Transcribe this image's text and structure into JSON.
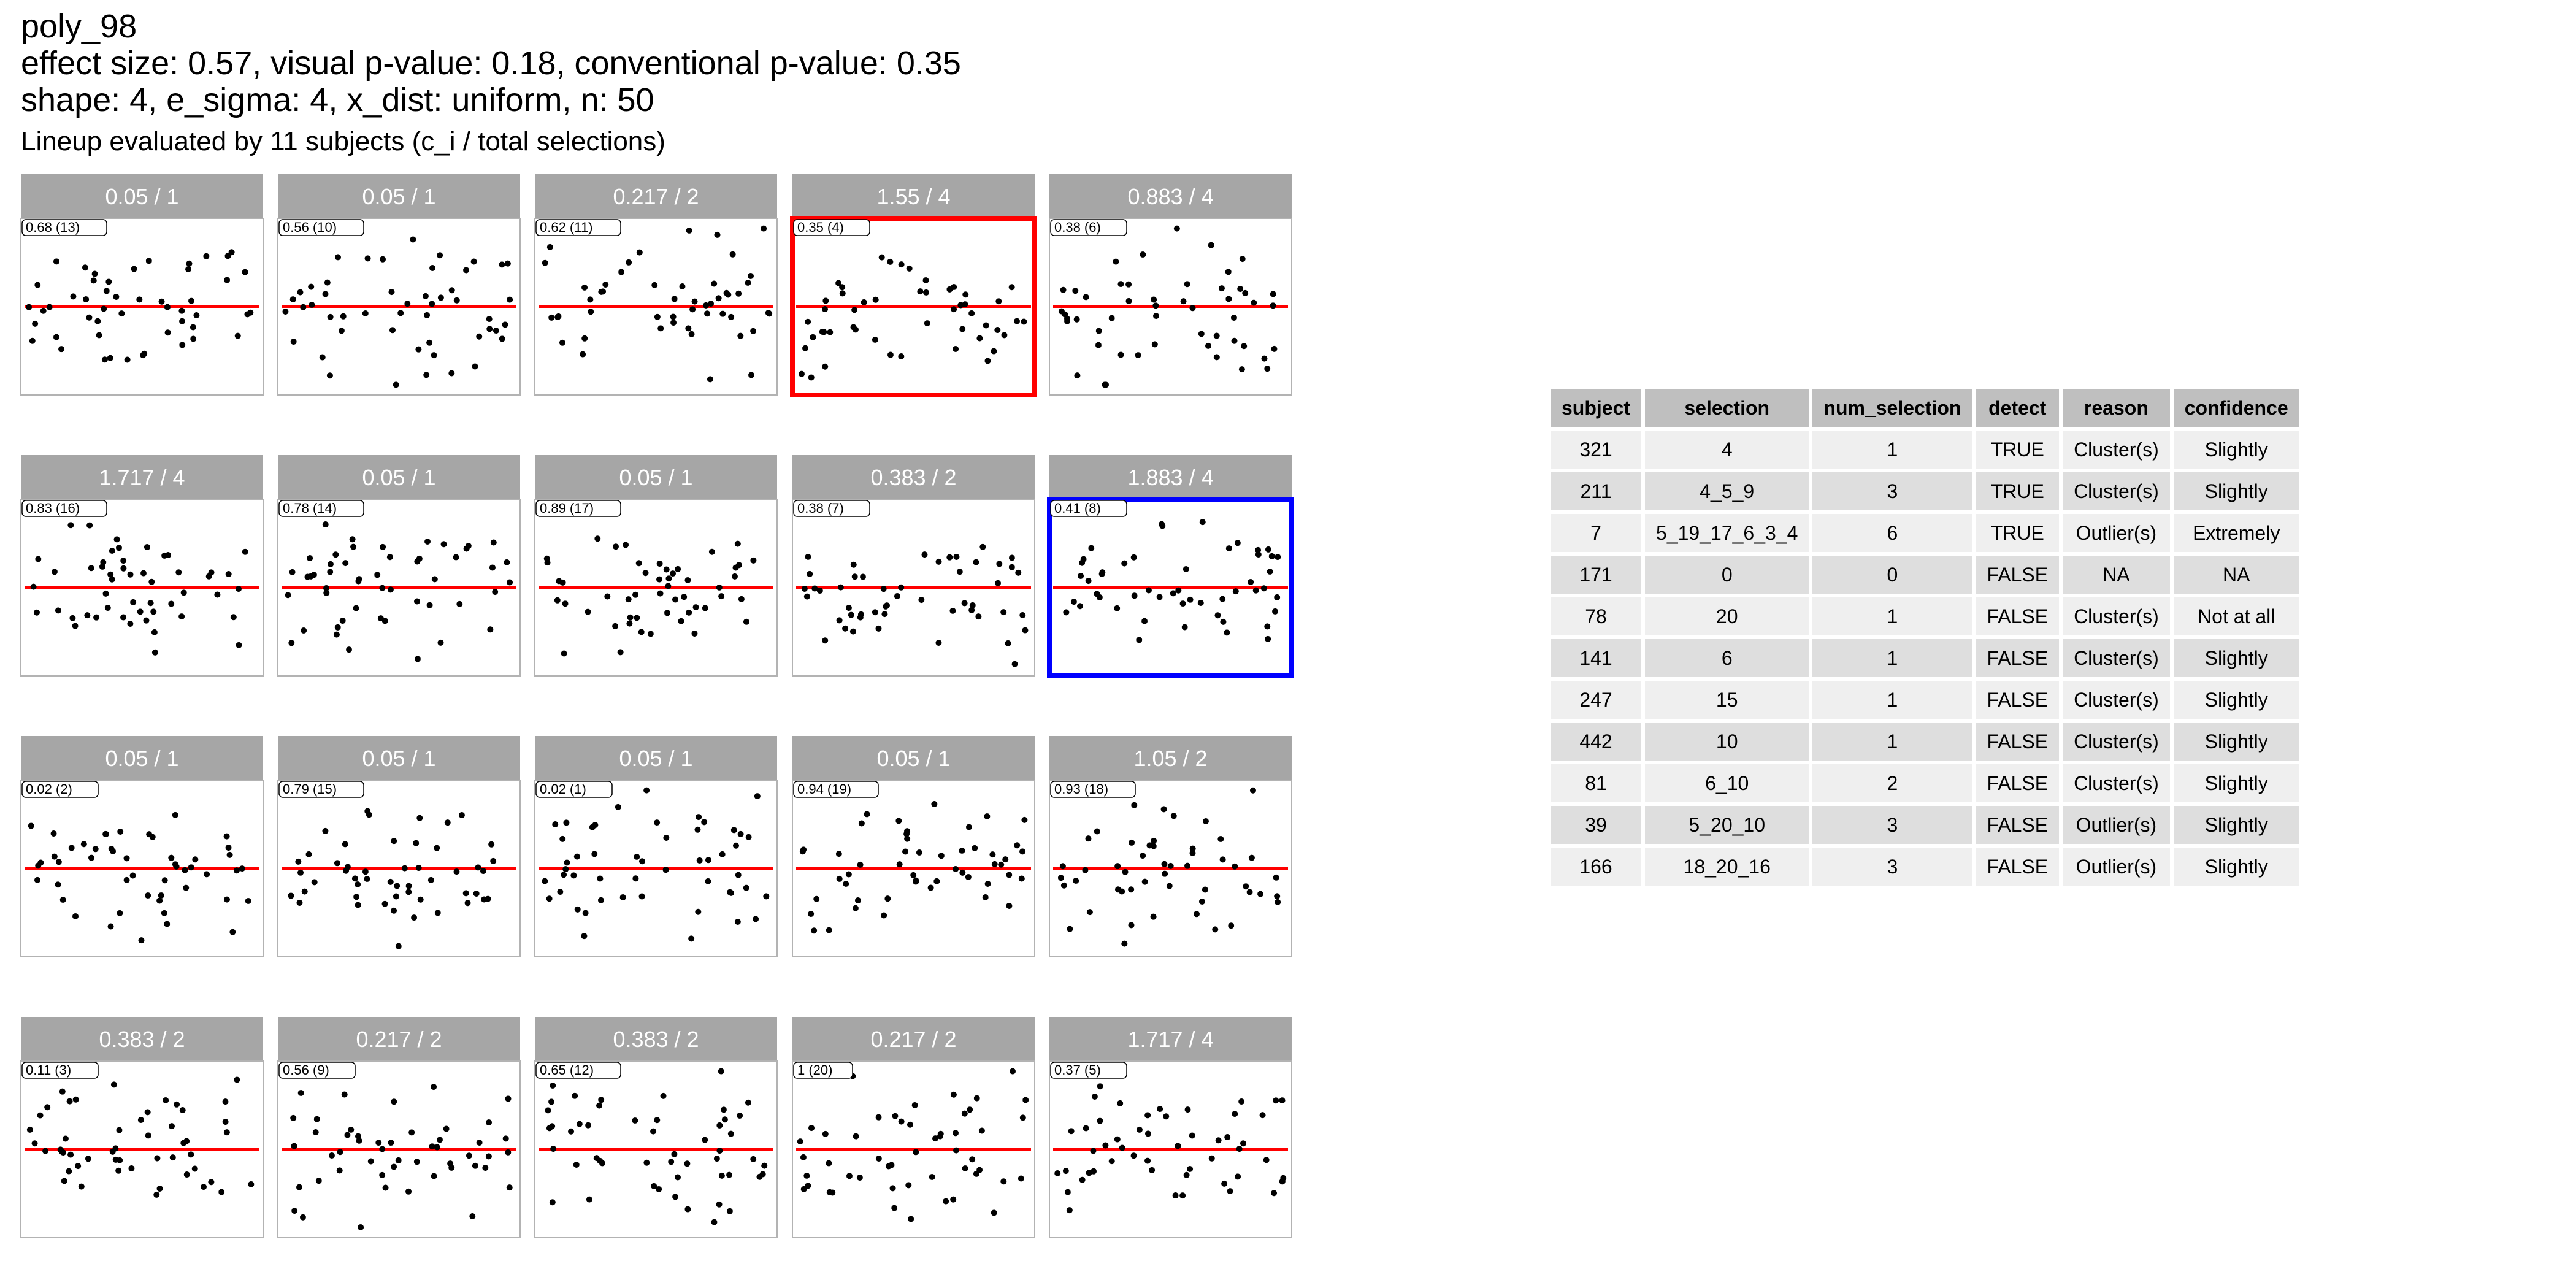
{
  "header": {
    "title": "poly_98",
    "line2": "effect size: 0.57, visual p-value: 0.18, conventional p-value: 0.35",
    "line3": "shape: 4, e_sigma: 4, x_dist: uniform, n: 50",
    "line4": "Lineup evaluated by 11 subjects (c_i / total selections)"
  },
  "chart_data": {
    "type": "scatter",
    "layout": "lineup facets (4 rows x 5 columns), each with red horizontal reference line at y=0",
    "panels": [
      {
        "strip": "0.05 / 1",
        "tag": "0.68 (13)",
        "highlight": "none",
        "seed": 13
      },
      {
        "strip": "0.05 / 1",
        "tag": "0.56 (10)",
        "highlight": "none",
        "seed": 10
      },
      {
        "strip": "0.217 / 2",
        "tag": "0.62 (11)",
        "highlight": "none",
        "seed": 11
      },
      {
        "strip": "1.55 / 4",
        "tag": "0.35 (4)",
        "highlight": "red",
        "seed": 4
      },
      {
        "strip": "0.883 / 4",
        "tag": "0.38 (6)",
        "highlight": "none",
        "seed": 6
      },
      {
        "strip": "1.717 / 4",
        "tag": "0.83 (16)",
        "highlight": "none",
        "seed": 16
      },
      {
        "strip": "0.05 / 1",
        "tag": "0.78 (14)",
        "highlight": "none",
        "seed": 14
      },
      {
        "strip": "0.05 / 1",
        "tag": "0.89 (17)",
        "highlight": "none",
        "seed": 17
      },
      {
        "strip": "0.383 / 2",
        "tag": "0.38 (7)",
        "highlight": "none",
        "seed": 7
      },
      {
        "strip": "1.883 / 4",
        "tag": "0.41 (8)",
        "highlight": "blue",
        "seed": 8
      },
      {
        "strip": "0.05 / 1",
        "tag": "0.02 (2)",
        "highlight": "none",
        "seed": 2
      },
      {
        "strip": "0.05 / 1",
        "tag": "0.79 (15)",
        "highlight": "none",
        "seed": 15
      },
      {
        "strip": "0.05 / 1",
        "tag": "0.02 (1)",
        "highlight": "none",
        "seed": 1
      },
      {
        "strip": "0.05 / 1",
        "tag": "0.94 (19)",
        "highlight": "none",
        "seed": 19
      },
      {
        "strip": "1.05 / 2",
        "tag": "0.93 (18)",
        "highlight": "none",
        "seed": 18
      },
      {
        "strip": "0.383 / 2",
        "tag": "0.11 (3)",
        "highlight": "none",
        "seed": 3
      },
      {
        "strip": "0.217 / 2",
        "tag": "0.56 (9)",
        "highlight": "none",
        "seed": 9
      },
      {
        "strip": "0.383 / 2",
        "tag": "0.65 (12)",
        "highlight": "none",
        "seed": 12
      },
      {
        "strip": "0.217 / 2",
        "tag": "1 (20)",
        "highlight": "none",
        "seed": 20
      },
      {
        "strip": "1.717 / 4",
        "tag": "0.37 (5)",
        "highlight": "none",
        "seed": 5
      }
    ],
    "points_per_panel": 50,
    "x_range": [
      0,
      1
    ],
    "y_range": [
      -1,
      1
    ],
    "reference_line": {
      "y": 0,
      "color": "#ff0000"
    },
    "strip_color": "#a6a6a6",
    "highlight_colors": {
      "red": "#ff0000",
      "blue": "#0000ff"
    }
  },
  "table": {
    "columns": [
      "subject",
      "selection",
      "num_selection",
      "detect",
      "reason",
      "confidence"
    ],
    "rows": [
      [
        "321",
        "4",
        "1",
        "TRUE",
        "Cluster(s)",
        "Slightly"
      ],
      [
        "211",
        "4_5_9",
        "3",
        "TRUE",
        "Cluster(s)",
        "Slightly"
      ],
      [
        "7",
        "5_19_17_6_3_4",
        "6",
        "TRUE",
        "Outlier(s)",
        "Extremely"
      ],
      [
        "171",
        "0",
        "0",
        "FALSE",
        "NA",
        "NA"
      ],
      [
        "78",
        "20",
        "1",
        "FALSE",
        "Cluster(s)",
        "Not at all"
      ],
      [
        "141",
        "6",
        "1",
        "FALSE",
        "Cluster(s)",
        "Slightly"
      ],
      [
        "247",
        "15",
        "1",
        "FALSE",
        "Cluster(s)",
        "Slightly"
      ],
      [
        "442",
        "10",
        "1",
        "FALSE",
        "Cluster(s)",
        "Slightly"
      ],
      [
        "81",
        "6_10",
        "2",
        "FALSE",
        "Cluster(s)",
        "Slightly"
      ],
      [
        "39",
        "5_20_10",
        "3",
        "FALSE",
        "Outlier(s)",
        "Slightly"
      ],
      [
        "166",
        "18_20_16",
        "3",
        "FALSE",
        "Outlier(s)",
        "Slightly"
      ]
    ]
  }
}
